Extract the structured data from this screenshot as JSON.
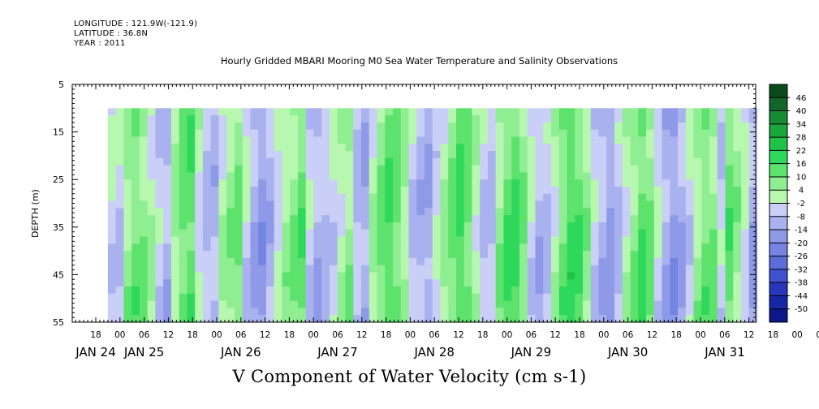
{
  "header": {
    "longitude": "LONGITUDE : 121.9W(-121.9)",
    "latitude": "LATITUDE : 36.8N",
    "year": "YEAR : 2011",
    "title": "Hourly Gridded MBARI Mooring M0 Sea Water Temperature and Salinity Observations"
  },
  "chart_data": {
    "type": "heatmap",
    "title": "Hourly Gridded MBARI Mooring M0 Sea Water Temperature and Salinity Observations",
    "subtitle": "V Component of Water Velocity (cm s-1)",
    "ylabel": "DEPTH (m)",
    "yticks": [
      "5",
      "15",
      "25",
      "35",
      "45",
      "55"
    ],
    "ylim": [
      5,
      55
    ],
    "y_inverted": true,
    "hour_ticks": [
      "18",
      "00",
      "06",
      "12",
      "18",
      "00",
      "06",
      "12",
      "18",
      "00",
      "06",
      "12",
      "18",
      "00",
      "06",
      "12",
      "18",
      "00",
      "06",
      "12",
      "18",
      "00",
      "06",
      "12",
      "18",
      "00",
      "06",
      "12",
      "18",
      "00",
      "06",
      "12"
    ],
    "date_ticks": [
      "JAN 24",
      "JAN 25",
      "JAN 26",
      "JAN 27",
      "JAN 28",
      "JAN 29",
      "JAN 30",
      "JAN 31"
    ],
    "data_start": "JAN 24 21:00",
    "data_end": "JAN 31 14:00",
    "data_depth_top": 10,
    "data_depth_bottom": 55,
    "colorbar_levels": [
      "46",
      "40",
      "34",
      "28",
      "22",
      "16",
      "10",
      "4",
      "-2",
      "-8",
      "-14",
      "-20",
      "-26",
      "-32",
      "-38",
      "-44",
      "-50"
    ],
    "colors": {
      "positive_light": "#a8f5a8",
      "positive_mid": "#5ee26e",
      "positive_strong": "#18c83a",
      "negative_light": "#b8bff2",
      "negative_mid": "#8e9ae8",
      "negative_strong": "#4f63dd"
    },
    "column_mean_v": [
      -4,
      -6,
      6,
      10,
      8,
      2,
      -6,
      -10,
      4,
      12,
      14,
      -2,
      -8,
      -10,
      2,
      6,
      10,
      -4,
      -12,
      -16,
      -10,
      -2,
      4,
      8,
      12,
      -6,
      -10,
      -8,
      -4,
      2,
      6,
      -8,
      -12,
      2,
      10,
      14,
      12,
      4,
      -6,
      -10,
      -12,
      -4,
      4,
      10,
      16,
      12,
      2,
      -6,
      -8,
      6,
      14,
      16,
      8,
      -4,
      -10,
      -8,
      2,
      10,
      16,
      14,
      6,
      -6,
      -10,
      -14,
      -8,
      2,
      8,
      14,
      10,
      -4,
      -12,
      -16,
      -12,
      -4,
      4,
      10,
      8,
      -6,
      12,
      6,
      -2,
      -12
    ]
  }
}
